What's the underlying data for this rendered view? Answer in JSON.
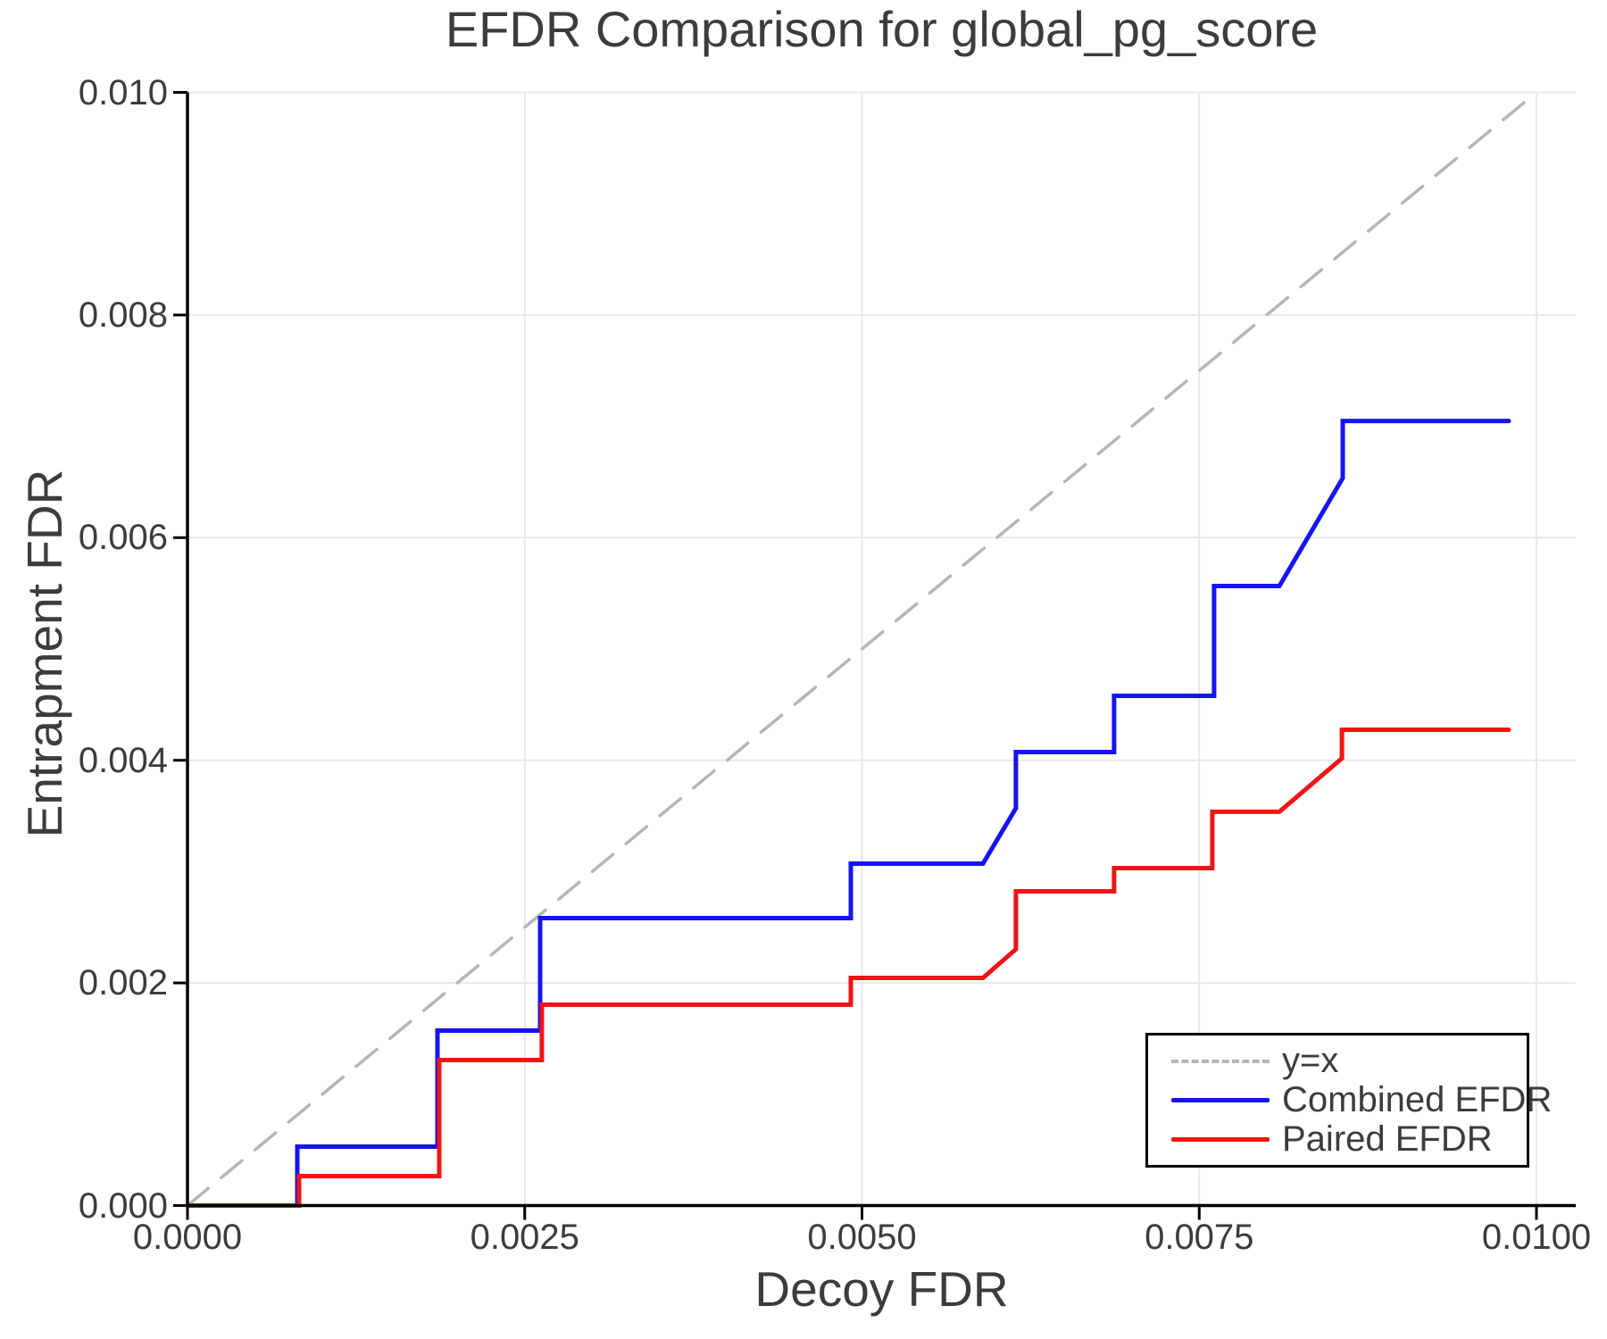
{
  "title": "EFDR Comparison for global_pg_score",
  "axes": {
    "x": {
      "label": "Decoy FDR",
      "ticks": [
        "0.0000",
        "0.0025",
        "0.0050",
        "0.0075",
        "0.0100"
      ],
      "tick_values": [
        0,
        0.0025,
        0.005,
        0.0075,
        0.01
      ]
    },
    "y": {
      "label": "Entrapment FDR",
      "ticks": [
        "0.000",
        "0.002",
        "0.004",
        "0.006",
        "0.008",
        "0.010"
      ],
      "tick_values": [
        0,
        0.002,
        0.004,
        0.006,
        0.008,
        0.01
      ]
    }
  },
  "legend": {
    "items": [
      {
        "label": "y=x",
        "color": "#b5b5b5",
        "dashed": true
      },
      {
        "label": "Combined EFDR",
        "color": "#1414f0",
        "dashed": false
      },
      {
        "label": "Paired EFDR",
        "color": "#f01414",
        "dashed": false
      }
    ]
  },
  "colors": {
    "grid": "#e9e9e9",
    "spine": "#000000",
    "text": "#3c3c3c",
    "diagonal": "#b5b5b5",
    "combined": "#1414f0",
    "paired": "#f01414"
  },
  "chart_data": {
    "type": "line",
    "title": "EFDR Comparison for global_pg_score",
    "xlabel": "Decoy FDR",
    "ylabel": "Entrapment FDR",
    "xlim": [
      0,
      0.0103
    ],
    "ylim": [
      0,
      0.01
    ],
    "grid": true,
    "legend_position": "lower right",
    "series": [
      {
        "name": "y=x",
        "style": "dashed",
        "color": "#b5b5b5",
        "x": [
          0,
          0.01
        ],
        "y": [
          0,
          0.01
        ]
      },
      {
        "name": "Combined EFDR",
        "style": "solid",
        "color": "#1414f0",
        "x": [
          0,
          0.000814,
          0.000814,
          0.001853,
          0.001853,
          0.002614,
          0.002614,
          0.004917,
          0.004917,
          0.005897,
          0.006141,
          0.006141,
          0.006869,
          0.006869,
          0.00761,
          0.00761,
          0.008094,
          0.008564,
          0.008564,
          0.009795
        ],
        "y": [
          0,
          0,
          0.000529,
          0.000529,
          0.001572,
          0.001572,
          0.002582,
          0.002582,
          0.003071,
          0.003071,
          0.003569,
          0.004074,
          0.004074,
          0.004579,
          0.004579,
          0.005565,
          0.005565,
          0.006535,
          0.007048,
          0.007048
        ]
      },
      {
        "name": "Paired EFDR",
        "style": "solid",
        "color": "#f01414",
        "x": [
          0,
          0.000827,
          0.000827,
          0.001866,
          0.001866,
          0.002627,
          0.002627,
          0.004917,
          0.004917,
          0.005897,
          0.006141,
          0.006141,
          0.006869,
          0.006869,
          0.007597,
          0.007597,
          0.008094,
          0.008558,
          0.008558,
          0.009795
        ],
        "y": [
          0,
          0,
          0.000265,
          0.000265,
          0.001307,
          0.001307,
          0.001804,
          0.001804,
          0.002045,
          0.002045,
          0.002302,
          0.002823,
          0.002823,
          0.003031,
          0.003031,
          0.003537,
          0.003537,
          0.004018,
          0.004274,
          0.004274
        ]
      }
    ]
  }
}
